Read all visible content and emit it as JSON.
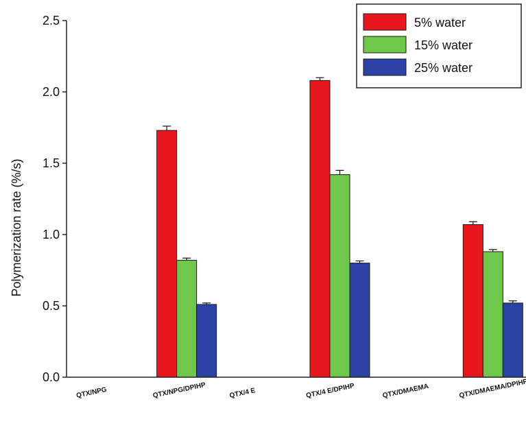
{
  "chart_data": {
    "type": "bar",
    "title": "",
    "xlabel": "",
    "ylabel": "Polymerization rate (%/s)",
    "ylim": [
      0,
      2.5
    ],
    "yticks": [
      "0.0",
      "0.5",
      "1.0",
      "1.5",
      "2.0",
      "2.5"
    ],
    "categories": [
      "QTX/NPG",
      "QTX/NPG/DPIHP",
      "QTX/4E",
      "QTX/4E/DPIHP",
      "QTX/DMAEMA",
      "QTX/DMAEMA/DPIHP"
    ],
    "category_labels": [
      "QTX/NPG",
      "QTX/NPG/DPIHP",
      "QTX/4 E",
      "QTX/4 E/DPIHP",
      "QTX/DMAEMA",
      "QTX/DMAEMA/DPIHP"
    ],
    "series": [
      {
        "name": "5% water",
        "color": "#e8161d",
        "values": [
          null,
          1.73,
          null,
          2.08,
          null,
          1.07
        ],
        "errors": [
          null,
          0.03,
          null,
          0.02,
          null,
          0.02
        ]
      },
      {
        "name": "15% water",
        "color": "#6fc84a",
        "values": [
          null,
          0.82,
          null,
          1.42,
          null,
          0.88
        ],
        "errors": [
          null,
          0.015,
          null,
          0.03,
          null,
          0.015
        ]
      },
      {
        "name": "25% water",
        "color": "#2c43a5",
        "values": [
          null,
          0.51,
          null,
          0.8,
          null,
          0.52
        ],
        "errors": [
          null,
          0.01,
          null,
          0.015,
          null,
          0.015
        ]
      }
    ],
    "legend_position": "top-right",
    "grid": false
  }
}
